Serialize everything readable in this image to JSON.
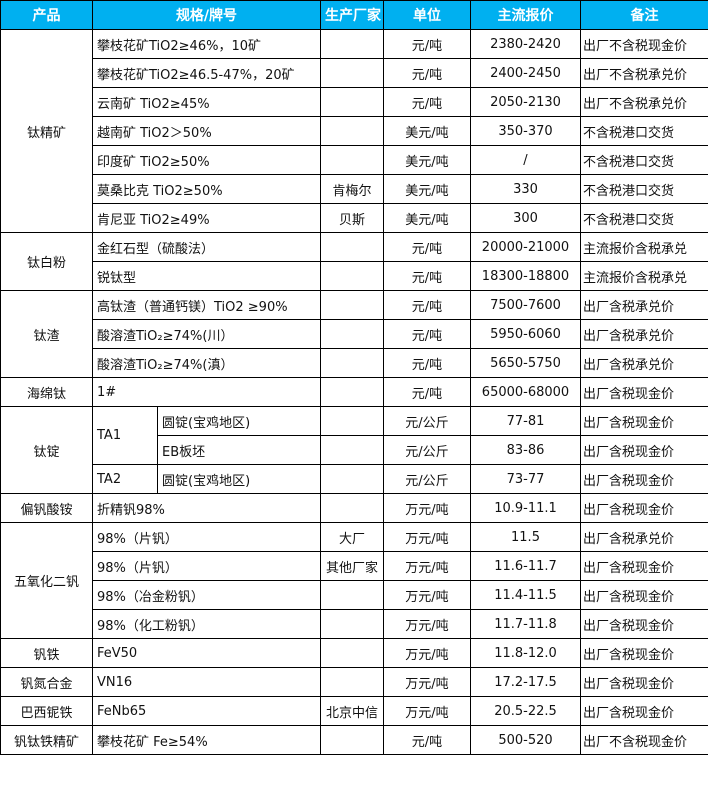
{
  "header": [
    "产品",
    "规格/牌号",
    "生产厂家",
    "单位",
    "主流报价",
    "备注"
  ],
  "colors": {
    "header_bg": "#00b0f0",
    "header_text": "#ffffff",
    "border": "#000000"
  },
  "groups": [
    {
      "product": "钛精矿",
      "rows": [
        {
          "spec": "攀枝花矿TiO2≥46%，10矿",
          "maker": "",
          "unit": "元/吨",
          "price": "2380-2420",
          "note": "出厂不含税现金价"
        },
        {
          "spec": "攀枝花矿TiO2≥46.5-47%，20矿",
          "maker": "",
          "unit": "元/吨",
          "price": "2400-2450",
          "note": "出厂不含税承兑价"
        },
        {
          "spec": "云南矿 TiO2≥45%",
          "maker": "",
          "unit": "元/吨",
          "price": "2050-2130",
          "note": "出厂不含税承兑价"
        },
        {
          "spec": "越南矿 TiO2＞50%",
          "maker": "",
          "unit": "美元/吨",
          "price": "350-370",
          "note": "不含税港口交货"
        },
        {
          "spec": "印度矿 TiO2≥50%",
          "maker": "",
          "unit": "美元/吨",
          "price": "/",
          "note": "不含税港口交货"
        },
        {
          "spec": "莫桑比克 TiO2≥50%",
          "maker": "肯梅尔",
          "unit": "美元/吨",
          "price": "330",
          "note": "不含税港口交货"
        },
        {
          "spec": "肯尼亚 TiO2≥49%",
          "maker": "贝斯",
          "unit": "美元/吨",
          "price": "300",
          "note": "不含税港口交货"
        }
      ]
    },
    {
      "product": "钛白粉",
      "rows": [
        {
          "spec": "金红石型（硫酸法）",
          "maker": "",
          "unit": "元/吨",
          "price": "20000-21000",
          "note": "主流报价含税承兑"
        },
        {
          "spec": "锐钛型",
          "maker": "",
          "unit": "元/吨",
          "price": "18300-18800",
          "note": "主流报价含税承兑"
        }
      ]
    },
    {
      "product": "钛渣",
      "rows": [
        {
          "spec": "高钛渣（普通钙镁）TiO2 ≥90%",
          "maker": "",
          "unit": "元/吨",
          "price": "7500-7600",
          "note": "出厂含税承兑价"
        },
        {
          "spec": "酸溶渣TiO₂≥74%(川）",
          "maker": "",
          "unit": "元/吨",
          "price": "5950-6060",
          "note": "出厂含税承兑价"
        },
        {
          "spec": "酸溶渣TiO₂≥74%(滇）",
          "maker": "",
          "unit": "元/吨",
          "price": "5650-5750",
          "note": "出厂含税承兑价"
        }
      ]
    },
    {
      "product": "海绵钛",
      "rows": [
        {
          "spec": "1#",
          "maker": "",
          "unit": "元/吨",
          "price": "65000-68000",
          "note": "出厂含税现金价"
        }
      ]
    },
    {
      "product": "钛锭",
      "rows": [
        {
          "grade": "TA1",
          "grade_span": 2,
          "spec": "圆锭(宝鸡地区)",
          "maker": "",
          "unit": "元/公斤",
          "price": "77-81",
          "note": "出厂含税现金价"
        },
        {
          "spec": "EB板坯",
          "maker": "",
          "unit": "元/公斤",
          "price": "83-86",
          "note": "出厂含税现金价"
        },
        {
          "grade": "TA2",
          "grade_span": 1,
          "spec": "圆锭(宝鸡地区)",
          "maker": "",
          "unit": "元/公斤",
          "price": "73-77",
          "note": "出厂含税现金价"
        }
      ]
    },
    {
      "product": "偏钒酸铵",
      "rows": [
        {
          "spec": "折精钒98%",
          "maker": "",
          "unit": "万元/吨",
          "price": "10.9-11.1",
          "note": "出厂含税现金价"
        }
      ]
    },
    {
      "product": "五氧化二钒",
      "rows": [
        {
          "spec": "98%（片钒）",
          "maker": "大厂",
          "unit": "万元/吨",
          "price": "11.5",
          "note": "出厂含税承兑价"
        },
        {
          "spec": "98%（片钒）",
          "maker": "其他厂家",
          "unit": "万元/吨",
          "price": "11.6-11.7",
          "note": "出厂含税现金价"
        },
        {
          "spec": "98%（冶金粉钒）",
          "maker": "",
          "unit": "万元/吨",
          "price": "11.4-11.5",
          "note": "出厂含税现金价"
        },
        {
          "spec": "98%（化工粉钒）",
          "maker": "",
          "unit": "万元/吨",
          "price": "11.7-11.8",
          "note": "出厂含税现金价"
        }
      ]
    },
    {
      "product": "钒铁",
      "rows": [
        {
          "spec": "FeV50",
          "maker": "",
          "unit": "万元/吨",
          "price": "11.8-12.0",
          "note": "出厂含税现金价"
        }
      ]
    },
    {
      "product": "钒氮合金",
      "rows": [
        {
          "spec": "VN16",
          "maker": "",
          "unit": "万元/吨",
          "price": "17.2-17.5",
          "note": "出厂含税现金价"
        }
      ]
    },
    {
      "product": "巴西铌铁",
      "rows": [
        {
          "spec": "FeNb65",
          "maker": "北京中信",
          "unit": "万元/吨",
          "price": "20.5-22.5",
          "note": "出厂含税现金价"
        }
      ]
    },
    {
      "product": "钒钛铁精矿",
      "rows": [
        {
          "spec": "攀枝花矿 Fe≥54%",
          "maker": "",
          "unit": "元/吨",
          "price": "500-520",
          "note": "出厂不含税现金价"
        }
      ]
    }
  ]
}
